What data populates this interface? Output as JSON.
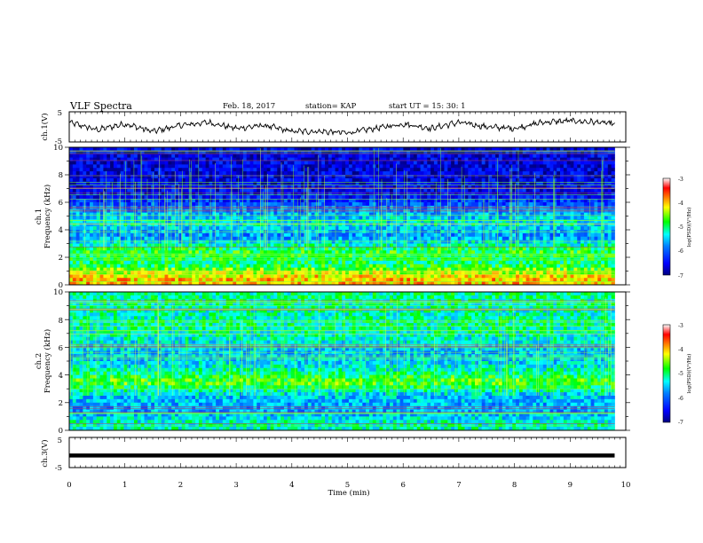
{
  "header": {
    "title": "VLF Spectra",
    "date": "Feb. 18, 2017",
    "station": "station= KAP",
    "start": "start  UT =   15: 30: 1"
  },
  "panels": {
    "ch1v": {
      "ylabel": "ch.1(V)",
      "ticks": [
        "5",
        "-5"
      ]
    },
    "spec1": {
      "ylabel_line1": "ch.1",
      "ylabel_line2": "Frequency  (kHz)",
      "ticks": [
        "10",
        "8",
        "6",
        "4",
        "2",
        "0"
      ]
    },
    "spec2": {
      "ylabel_line1": "ch.2",
      "ylabel_line2": "Frequency  (kHz)",
      "ticks": [
        "10",
        "8",
        "6",
        "4",
        "2",
        "0"
      ]
    },
    "ch3v": {
      "ylabel": "ch.3(V)",
      "ticks": [
        "5",
        "-5"
      ]
    }
  },
  "xaxis": {
    "label": "Time  (min)",
    "ticks": [
      "0",
      "1",
      "2",
      "3",
      "4",
      "5",
      "6",
      "7",
      "8",
      "9",
      "10"
    ]
  },
  "colorbar": {
    "title": "log(PSD)(V²/Hz)",
    "ticks": [
      "-3",
      "-4",
      "-5",
      "-6",
      "-7"
    ]
  },
  "colors": {
    "spectral": [
      "#00007f",
      "#0000ff",
      "#0080ff",
      "#00ffff",
      "#00ff00",
      "#ffff00",
      "#ff8000",
      "#ff0000",
      "#ffffff"
    ]
  },
  "chart_data": [
    {
      "type": "line",
      "name": "ch.1(V)",
      "xlabel": "Time  (min)",
      "ylabel": "ch.1(V)",
      "xlim": [
        0,
        10
      ],
      "ylim": [
        -5,
        5
      ],
      "x": [
        0,
        0.5,
        1,
        1.5,
        2,
        2.5,
        3,
        3.5,
        4,
        4.5,
        5,
        5.5,
        6,
        6.5,
        7,
        7.5,
        8,
        8.5,
        9,
        9.5,
        9.8
      ],
      "y": [
        1.5,
        -1.0,
        1.0,
        -1.5,
        0.5,
        1.5,
        -0.5,
        0.5,
        -1.5,
        -1.5,
        -2.0,
        -0.5,
        1.0,
        -0.5,
        1.5,
        0,
        -0.5,
        1.5,
        2.0,
        1.5,
        1.0
      ]
    },
    {
      "type": "heatmap",
      "name": "ch.1",
      "xlabel": "Time  (min)",
      "ylabel": "Frequency  (kHz)",
      "xlim": [
        0,
        9.8
      ],
      "ylim": [
        0,
        10
      ],
      "colorbar_range": [
        -7,
        -3
      ],
      "freq_kHz": [
        0.5,
        1.5,
        2.5,
        3.5,
        4.5,
        5.5,
        6.5,
        7.5,
        8.5,
        9.5
      ],
      "log_psd": [
        -4.0,
        -5.0,
        -4.8,
        -5.8,
        -5.3,
        -5.8,
        -6.5,
        -6.6,
        -6.6,
        -6.6
      ]
    },
    {
      "type": "heatmap",
      "name": "ch.2",
      "xlabel": "Time  (min)",
      "ylabel": "Frequency  (kHz)",
      "xlim": [
        0,
        9.8
      ],
      "ylim": [
        0,
        10
      ],
      "colorbar_range": [
        -7,
        -3
      ],
      "freq_kHz": [
        0.5,
        1.5,
        2.5,
        3.5,
        4.5,
        5.5,
        6.5,
        7.5,
        8.5,
        9.5
      ],
      "log_psd": [
        -5.2,
        -5.7,
        -5.5,
        -4.6,
        -5.3,
        -5.6,
        -5.3,
        -5.1,
        -5.2,
        -5.1
      ]
    },
    {
      "type": "line",
      "name": "ch.3(V)",
      "xlabel": "Time  (min)",
      "ylabel": "ch.3(V)",
      "xlim": [
        0,
        10
      ],
      "ylim": [
        -5,
        5
      ],
      "x": [
        0,
        9.8
      ],
      "y": [
        -1.0,
        -1.0
      ]
    }
  ]
}
